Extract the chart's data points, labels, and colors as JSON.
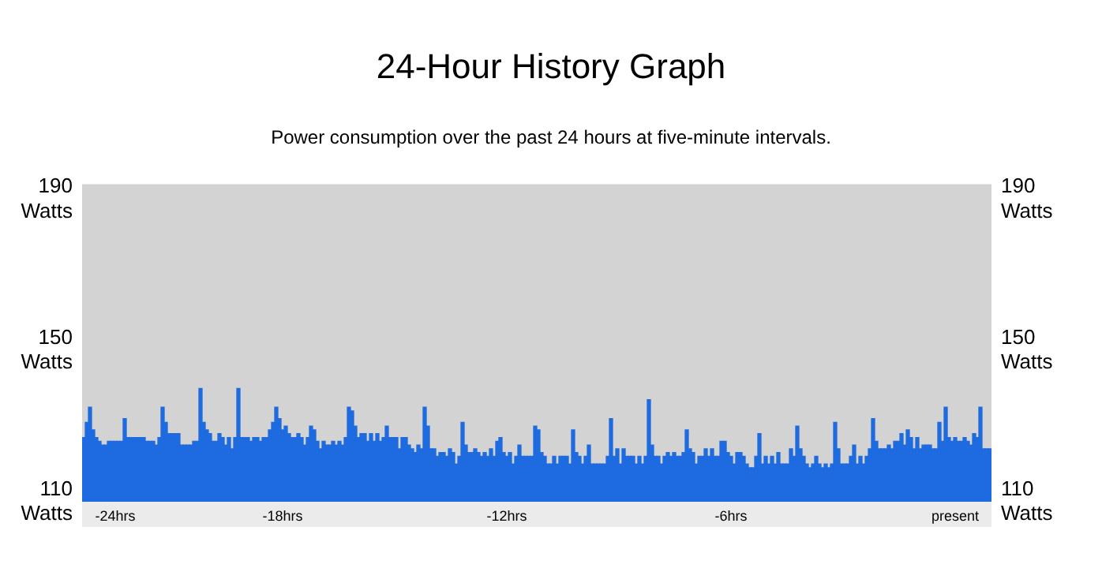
{
  "chart_data": {
    "type": "bar",
    "title": "24-Hour History Graph",
    "subtitle": "Power consumption over the past 24 hours at five-minute intervals.",
    "categories": [
      null,
      null,
      null,
      null,
      null,
      null,
      null,
      null,
      null,
      null,
      "-24hrs",
      null,
      null,
      null,
      null,
      null,
      null,
      null,
      null,
      null,
      null,
      null,
      null,
      null,
      null,
      null,
      null,
      null,
      null,
      null,
      null,
      null,
      null,
      null,
      null,
      null,
      null,
      null,
      null,
      null,
      null,
      null,
      null,
      null,
      null,
      null,
      null,
      null,
      null,
      null,
      null,
      null,
      null,
      null,
      null,
      null,
      null,
      null,
      null,
      null,
      null,
      null,
      null,
      "-18hrs",
      null,
      null,
      null,
      null,
      null,
      null,
      null,
      null,
      null,
      null,
      null,
      null,
      null,
      null,
      null,
      null,
      null,
      null,
      null,
      null,
      null,
      null,
      null,
      null,
      null,
      null,
      null,
      null,
      null,
      null,
      null,
      null,
      null,
      null,
      null,
      null,
      null,
      null,
      null,
      null,
      null,
      null,
      null,
      null,
      null,
      null,
      null,
      null,
      null,
      null,
      null,
      null,
      null,
      null,
      null,
      null,
      null,
      null,
      null,
      null,
      null,
      null,
      null,
      null,
      null,
      null,
      null,
      null,
      null,
      null,
      "-12hrs",
      null,
      null,
      null,
      null,
      null,
      null,
      null,
      null,
      null,
      null,
      null,
      null,
      null,
      null,
      null,
      null,
      null,
      null,
      null,
      null,
      null,
      null,
      null,
      null,
      null,
      null,
      null,
      null,
      null,
      null,
      null,
      null,
      null,
      null,
      null,
      null,
      null,
      null,
      null,
      null,
      null,
      null,
      null,
      null,
      null,
      null,
      null,
      null,
      null,
      null,
      null,
      null,
      null,
      null,
      null,
      null,
      null,
      null,
      null,
      null,
      null,
      null,
      null,
      null,
      null,
      null,
      null,
      null,
      null,
      null,
      "-6hrs",
      null,
      null,
      null,
      null,
      null,
      null,
      null,
      null,
      null,
      null,
      null,
      null,
      null,
      null,
      null,
      null,
      null,
      null,
      null,
      null,
      null,
      null,
      null,
      null,
      null,
      null,
      null,
      null,
      null,
      null,
      null,
      null,
      null,
      null,
      null,
      null,
      null,
      null,
      null,
      null,
      null,
      null,
      null,
      null,
      null,
      null,
      null,
      null,
      null,
      null,
      null,
      null,
      null,
      null,
      null,
      null,
      null,
      null,
      null,
      null,
      null,
      null,
      null,
      null,
      null,
      null,
      null,
      null,
      null,
      null,
      "present",
      null,
      null,
      null,
      null,
      null,
      null,
      null,
      null,
      null,
      null,
      null
    ],
    "values": [
      127,
      131,
      135,
      129,
      127,
      126,
      125,
      125,
      126,
      126,
      126,
      126,
      126,
      132,
      127,
      127,
      127,
      127,
      127,
      127,
      126,
      126,
      126,
      125,
      127,
      135,
      131,
      128,
      128,
      128,
      128,
      125,
      125,
      125,
      125,
      126,
      126,
      140,
      131,
      129,
      128,
      126,
      126,
      128,
      127,
      125,
      127,
      124,
      127,
      140,
      127,
      127,
      127,
      126,
      127,
      127,
      126,
      127,
      127,
      129,
      131,
      135,
      132,
      129,
      130,
      128,
      127,
      127,
      128,
      127,
      125,
      127,
      130,
      129,
      126,
      124,
      126,
      125,
      125,
      126,
      125,
      126,
      125,
      127,
      135,
      134,
      130,
      127,
      128,
      128,
      126,
      128,
      126,
      128,
      126,
      127,
      130,
      127,
      127,
      127,
      124,
      127,
      127,
      125,
      124,
      123,
      125,
      124,
      135,
      130,
      124,
      124,
      122,
      123,
      123,
      122,
      124,
      123,
      120,
      122,
      131,
      125,
      123,
      123,
      124,
      123,
      122,
      123,
      122,
      124,
      122,
      126,
      127,
      123,
      122,
      123,
      120,
      122,
      125,
      122,
      122,
      122,
      122,
      130,
      129,
      123,
      122,
      120,
      120,
      122,
      120,
      122,
      122,
      122,
      120,
      129,
      123,
      122,
      120,
      122,
      125,
      120,
      120,
      120,
      120,
      120,
      122,
      132,
      122,
      124,
      120,
      124,
      122,
      122,
      122,
      120,
      122,
      120,
      122,
      137,
      125,
      122,
      122,
      120,
      122,
      123,
      122,
      123,
      122,
      122,
      123,
      129,
      124,
      123,
      120,
      122,
      122,
      124,
      122,
      124,
      122,
      122,
      126,
      126,
      123,
      122,
      120,
      123,
      123,
      122,
      120,
      119,
      119,
      122,
      128,
      120,
      122,
      120,
      122,
      120,
      123,
      120,
      120,
      120,
      124,
      122,
      130,
      124,
      122,
      120,
      119,
      120,
      122,
      120,
      119,
      120,
      119,
      120,
      131,
      124,
      120,
      120,
      120,
      122,
      125,
      120,
      122,
      120,
      122,
      124,
      132,
      126,
      124,
      124,
      124,
      125,
      124,
      126,
      126,
      128,
      125,
      129,
      127,
      124,
      127,
      124,
      125,
      125,
      125,
      124,
      124,
      131,
      126,
      135,
      127,
      126,
      127,
      126,
      126,
      127,
      126,
      125,
      128,
      127,
      135,
      124,
      124,
      124
    ],
    "color": "#1e6be0",
    "ylim": [
      110,
      194
    ],
    "yticks": [
      {
        "value": 110,
        "label": "110 Watts"
      },
      {
        "value": 150,
        "label": "150 Watts"
      },
      {
        "value": 190,
        "label": "190 Watts"
      }
    ],
    "y2lim": [
      110,
      194
    ],
    "y2ticks": [
      {
        "value": 110,
        "label": "110 Watts"
      },
      {
        "value": 150,
        "label": "150 Watts"
      },
      {
        "value": 190,
        "label": "190 Watts"
      }
    ],
    "grid": false,
    "legend": false
  }
}
